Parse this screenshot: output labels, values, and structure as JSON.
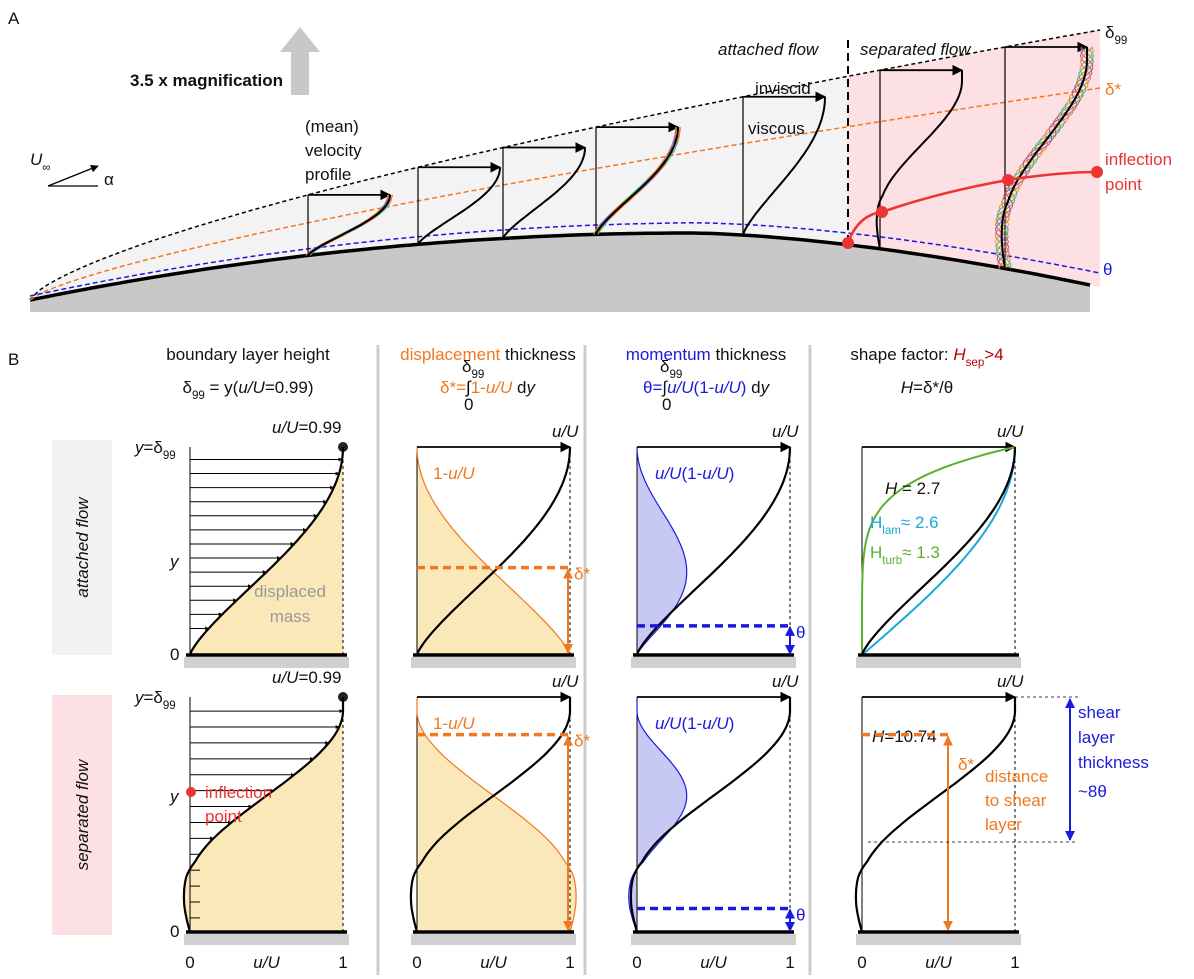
{
  "panel_a": {
    "label": "A",
    "magnification": "3.5 x magnification",
    "profile_label": [
      "(mean)",
      "velocity",
      "profile"
    ],
    "freestream": {
      "symbol": "U",
      "sub": "∞",
      "angle": "α"
    },
    "attached_flow": "attached flow",
    "separated_flow": "separated flow",
    "inviscid": "inviscid",
    "viscous": "viscous",
    "boundary_layer": {
      "symbol": "δ",
      "sub": "99"
    },
    "displacement": "δ*",
    "momentum": "θ",
    "inflection_point": [
      "inflection",
      "point"
    ]
  },
  "panel_b": {
    "label": "B",
    "columns": [
      {
        "title": [
          "boundary layer height"
        ],
        "formula": [
          "δ",
          "99",
          " = y(",
          "u/U",
          "=0.99)"
        ]
      },
      {
        "title": [
          "displacement",
          " thickness"
        ],
        "formula": [
          "δ*=",
          "∫",
          "1-",
          "u/U",
          " d",
          "y"
        ]
      },
      {
        "title": [
          "momentum",
          " thickness"
        ],
        "formula": [
          "θ=",
          "∫",
          "u/U",
          "(1-",
          "u/U",
          ")",
          " d",
          "y"
        ]
      },
      {
        "title": [
          "shape factor: ",
          "H",
          "sep",
          ">4"
        ],
        "formula": [
          "H",
          "=δ*/θ"
        ]
      }
    ],
    "integral_limits": {
      "upper": "δ",
      "upper_sub": "99",
      "lower": "0"
    },
    "rows": [
      "attached flow",
      "separated flow"
    ],
    "axis": {
      "zero": "0",
      "label": "u/U",
      "one": "1"
    },
    "labels": {
      "u_ref": [
        "u/U",
        "=0.99"
      ],
      "y_top": [
        "y",
        "=δ",
        "99"
      ],
      "y": "y",
      "displaced_mass": [
        "displaced",
        "mass"
      ],
      "deficit": [
        "1-",
        "u/U"
      ],
      "momentum_deficit": [
        "u/U",
        "(1-",
        "u/U",
        ")"
      ],
      "delta_star": "δ*",
      "theta": "θ",
      "H_attached": [
        "H",
        " = 2.7"
      ],
      "H_lam": [
        "H",
        "lam",
        "≈ 2.6"
      ],
      "H_turb": [
        "H",
        "turb",
        "≈ 1.3"
      ],
      "inflection_point": [
        "inflection",
        "point"
      ],
      "H_separated": [
        "H",
        "=10.74"
      ],
      "distance": [
        "distance",
        "to shear",
        "layer"
      ],
      "shear_layer": [
        "shear",
        "layer",
        "thickness",
        "~8θ"
      ]
    }
  }
}
